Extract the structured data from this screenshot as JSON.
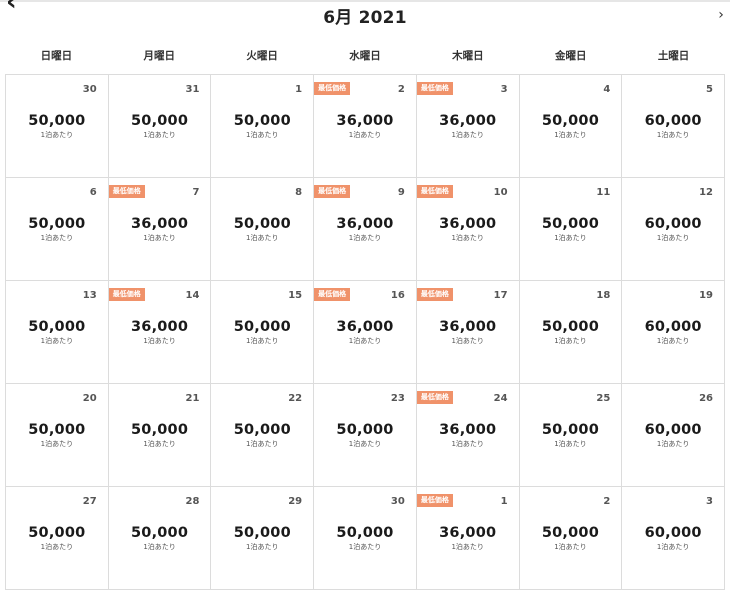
{
  "header": {
    "title": "6月 2021",
    "prev_icon": "‹",
    "next_icon": "›"
  },
  "weekdays": [
    "日曜日",
    "月曜日",
    "火曜日",
    "水曜日",
    "木曜日",
    "金曜日",
    "土曜日"
  ],
  "badge_label": "最低価格",
  "unit_label": "1泊あたり",
  "colors": {
    "badge": "#f0926a",
    "grid": "#dcdcdc"
  },
  "weeks": [
    [
      {
        "day": "30",
        "price": "50,000",
        "badge": false
      },
      {
        "day": "31",
        "price": "50,000",
        "badge": false
      },
      {
        "day": "1",
        "price": "50,000",
        "badge": false
      },
      {
        "day": "2",
        "price": "36,000",
        "badge": true
      },
      {
        "day": "3",
        "price": "36,000",
        "badge": true
      },
      {
        "day": "4",
        "price": "50,000",
        "badge": false
      },
      {
        "day": "5",
        "price": "60,000",
        "badge": false
      }
    ],
    [
      {
        "day": "6",
        "price": "50,000",
        "badge": false
      },
      {
        "day": "7",
        "price": "36,000",
        "badge": true
      },
      {
        "day": "8",
        "price": "50,000",
        "badge": false
      },
      {
        "day": "9",
        "price": "36,000",
        "badge": true
      },
      {
        "day": "10",
        "price": "36,000",
        "badge": true
      },
      {
        "day": "11",
        "price": "50,000",
        "badge": false
      },
      {
        "day": "12",
        "price": "60,000",
        "badge": false
      }
    ],
    [
      {
        "day": "13",
        "price": "50,000",
        "badge": false
      },
      {
        "day": "14",
        "price": "36,000",
        "badge": true
      },
      {
        "day": "15",
        "price": "50,000",
        "badge": false
      },
      {
        "day": "16",
        "price": "36,000",
        "badge": true
      },
      {
        "day": "17",
        "price": "36,000",
        "badge": true
      },
      {
        "day": "18",
        "price": "50,000",
        "badge": false
      },
      {
        "day": "19",
        "price": "60,000",
        "badge": false
      }
    ],
    [
      {
        "day": "20",
        "price": "50,000",
        "badge": false
      },
      {
        "day": "21",
        "price": "50,000",
        "badge": false
      },
      {
        "day": "22",
        "price": "50,000",
        "badge": false
      },
      {
        "day": "23",
        "price": "50,000",
        "badge": false
      },
      {
        "day": "24",
        "price": "36,000",
        "badge": true
      },
      {
        "day": "25",
        "price": "50,000",
        "badge": false
      },
      {
        "day": "26",
        "price": "60,000",
        "badge": false
      }
    ],
    [
      {
        "day": "27",
        "price": "50,000",
        "badge": false
      },
      {
        "day": "28",
        "price": "50,000",
        "badge": false
      },
      {
        "day": "29",
        "price": "50,000",
        "badge": false
      },
      {
        "day": "30",
        "price": "50,000",
        "badge": false
      },
      {
        "day": "1",
        "price": "36,000",
        "badge": true
      },
      {
        "day": "2",
        "price": "50,000",
        "badge": false
      },
      {
        "day": "3",
        "price": "60,000",
        "badge": false
      }
    ]
  ]
}
